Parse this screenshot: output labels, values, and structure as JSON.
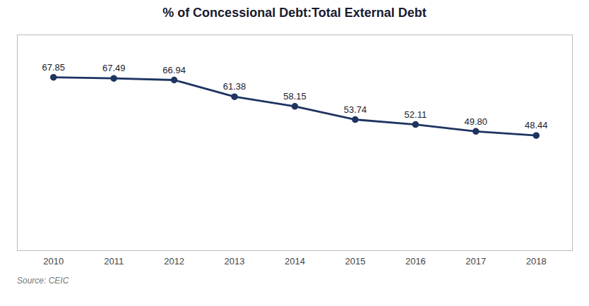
{
  "chart_data": {
    "type": "line",
    "title": "% of Concessional Debt:Total External Debt",
    "x": [
      2010,
      2011,
      2012,
      2013,
      2014,
      2015,
      2016,
      2017,
      2018
    ],
    "values": [
      67.85,
      67.49,
      66.94,
      61.38,
      58.15,
      53.74,
      52.11,
      49.8,
      48.44
    ],
    "value_labels": [
      "67.85",
      "67.49",
      "66.94",
      "61.38",
      "58.15",
      "53.74",
      "52.11",
      "49.80",
      "48.44"
    ],
    "color": "#1e3461",
    "marker": "circle",
    "xlim": [
      2009.4,
      2018.6
    ],
    "xticks": [
      2010,
      2011,
      2012,
      2013,
      2014,
      2015,
      2016,
      2017,
      2018
    ],
    "ylim": [
      10,
      82
    ],
    "yticks": [],
    "tick_labels": "x",
    "data_labels": true,
    "grid": false,
    "annotations": [
      "Source: CEIC"
    ]
  }
}
